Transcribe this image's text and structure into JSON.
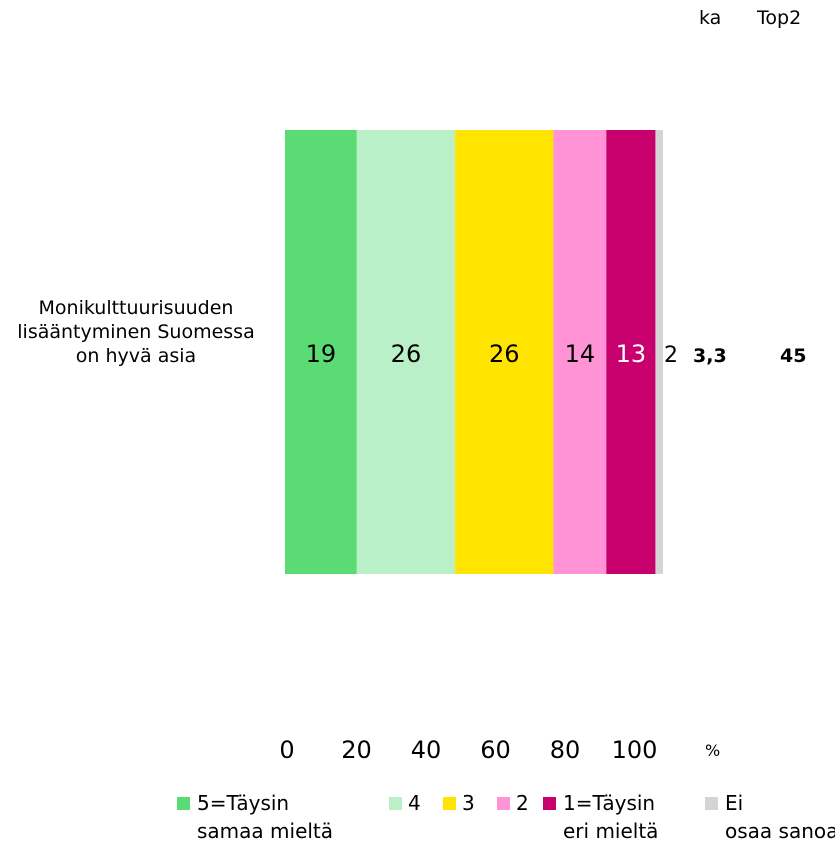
{
  "header": {
    "mean_label": "ka",
    "top2_label": "Top2"
  },
  "chart_data": {
    "type": "bar",
    "orientation": "horizontal",
    "stacked": true,
    "categories": [
      "Monikulttuurisuuden lisääntyminen Suomessa on hyvä asia"
    ],
    "series": [
      {
        "name": "5=Täysin samaa mieltä",
        "values": [
          19
        ],
        "color": "#5ADB74",
        "label_color": "#000000"
      },
      {
        "name": "4",
        "values": [
          26
        ],
        "color": "#BAF0C8",
        "label_color": "#000000"
      },
      {
        "name": "3",
        "values": [
          26
        ],
        "color": "#FFE400",
        "label_color": "#000000"
      },
      {
        "name": "2",
        "values": [
          14
        ],
        "color": "#FF93D6",
        "label_color": "#000000"
      },
      {
        "name": "1=Täysin eri mieltä",
        "values": [
          13
        ],
        "color": "#C8006E",
        "label_color": "#ffffff"
      },
      {
        "name": "Ei osaa sanoa",
        "values": [
          2
        ],
        "color": "#D4D4D4",
        "label_color": "#000000"
      }
    ],
    "xlim": [
      0,
      100
    ],
    "x_ticks": [
      "0",
      "20",
      "40",
      "60",
      "80",
      "100"
    ],
    "x_unit": "%",
    "mean": [
      "3,3"
    ],
    "top2": [
      "45"
    ],
    "grid": false,
    "legend_position": "bottom"
  }
}
